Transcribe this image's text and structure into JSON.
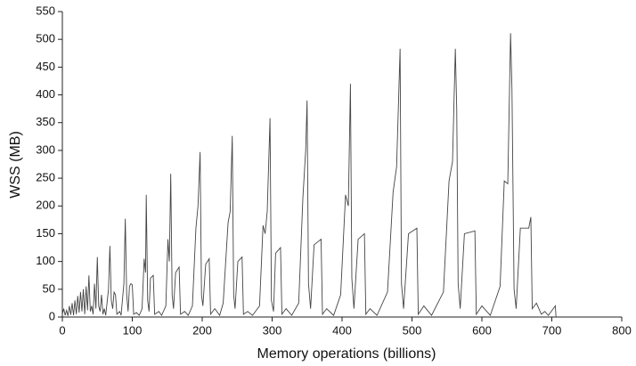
{
  "chart_data": {
    "type": "line",
    "x_label": "Memory operations (billions)",
    "y_label": "WSS (MB)",
    "color": "#444444",
    "xlim": [
      0,
      800
    ],
    "xticks": [
      0,
      100,
      200,
      300,
      400,
      500,
      600,
      700,
      800
    ],
    "ylim": [
      0,
      550
    ],
    "yticks": [
      0,
      50,
      100,
      150,
      200,
      250,
      300,
      350,
      400,
      450,
      500,
      550
    ],
    "grid": false,
    "x": [
      0,
      2,
      4,
      6,
      8,
      10,
      12,
      14,
      16,
      18,
      20,
      22,
      24,
      26,
      28,
      30,
      32,
      34,
      36,
      38,
      40,
      42,
      44,
      46,
      48,
      50,
      52,
      54,
      56,
      58,
      60,
      62,
      66,
      68,
      70,
      72,
      74,
      76,
      78,
      82,
      84,
      88,
      90,
      92,
      94,
      96,
      98,
      100,
      102,
      106,
      110,
      114,
      117,
      119,
      120,
      122,
      124,
      126,
      130,
      132,
      138,
      142,
      148,
      151,
      153,
      155,
      157,
      159,
      162,
      167,
      169,
      175,
      180,
      186,
      191,
      194,
      197,
      199,
      201,
      205,
      210,
      212,
      218,
      225,
      230,
      237,
      240,
      243,
      245,
      247,
      251,
      257,
      259,
      265,
      272,
      282,
      287,
      290,
      293,
      297,
      299,
      302,
      305,
      312,
      314,
      320,
      328,
      338,
      344,
      348,
      350,
      352,
      355,
      360,
      370,
      372,
      378,
      388,
      398,
      405,
      409,
      412,
      414,
      417,
      423,
      432,
      434,
      440,
      450,
      465,
      473,
      478,
      483,
      485,
      488,
      495,
      507,
      509,
      517,
      528,
      545,
      553,
      558,
      562,
      564,
      566,
      569,
      575,
      590,
      592,
      600,
      612,
      626,
      632,
      637,
      641,
      643,
      646,
      649,
      655,
      667,
      670,
      672,
      678,
      685,
      690,
      695,
      705,
      706
    ],
    "values": [
      5,
      15,
      3,
      12,
      2,
      20,
      4,
      25,
      3,
      30,
      5,
      38,
      8,
      45,
      10,
      50,
      5,
      55,
      12,
      75,
      10,
      20,
      5,
      60,
      15,
      108,
      20,
      10,
      40,
      5,
      15,
      3,
      50,
      128,
      30,
      15,
      45,
      40,
      5,
      10,
      3,
      60,
      177,
      40,
      10,
      55,
      60,
      58,
      5,
      8,
      3,
      15,
      105,
      80,
      220,
      30,
      10,
      70,
      75,
      5,
      10,
      3,
      20,
      140,
      100,
      258,
      40,
      15,
      80,
      90,
      5,
      10,
      3,
      20,
      160,
      200,
      297,
      40,
      20,
      95,
      105,
      5,
      15,
      3,
      25,
      170,
      190,
      326,
      40,
      15,
      100,
      108,
      5,
      10,
      3,
      20,
      165,
      150,
      190,
      358,
      30,
      10,
      115,
      125,
      5,
      15,
      3,
      25,
      215,
      300,
      390,
      60,
      15,
      130,
      140,
      5,
      15,
      3,
      40,
      220,
      200,
      420,
      70,
      15,
      140,
      150,
      5,
      15,
      3,
      45,
      225,
      270,
      483,
      60,
      15,
      150,
      160,
      5,
      20,
      3,
      45,
      245,
      280,
      483,
      375,
      60,
      15,
      150,
      155,
      5,
      20,
      3,
      55,
      245,
      240,
      511,
      410,
      50,
      15,
      160,
      160,
      180,
      15,
      25,
      5,
      10,
      3,
      20,
      0
    ]
  }
}
